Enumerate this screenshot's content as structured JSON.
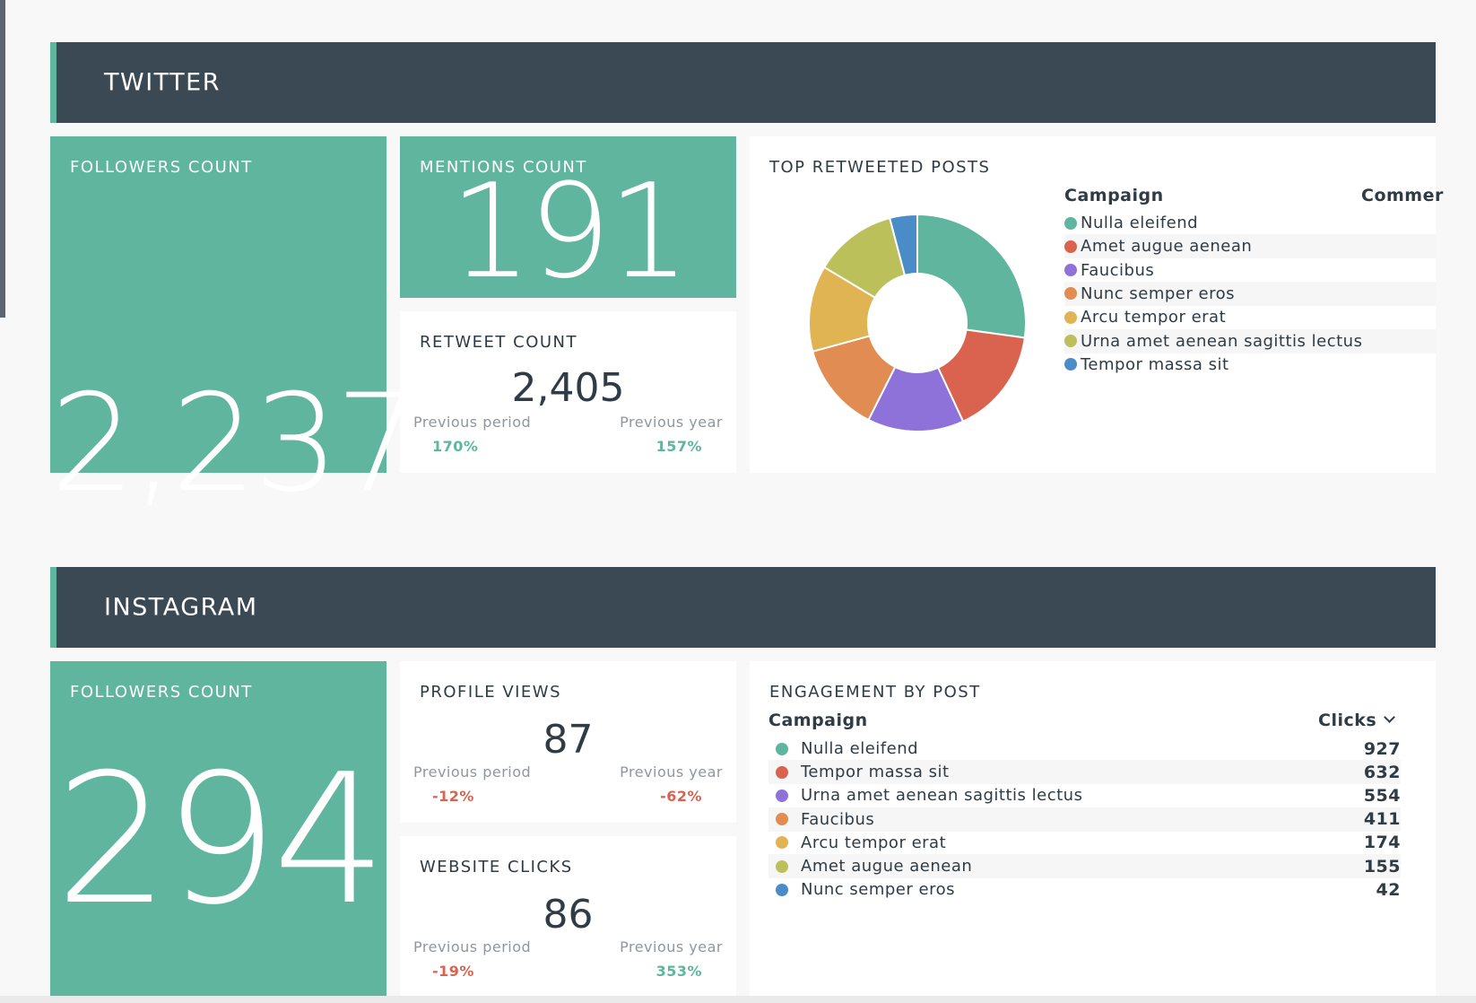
{
  "twitter": {
    "title": "TWITTER",
    "followers": {
      "title": "FOLLOWERS COUNT",
      "value": "2,237"
    },
    "mentions": {
      "title": "MENTIONS COUNT",
      "value": "191"
    },
    "retweets": {
      "title": "RETWEET COUNT",
      "value": "2,405",
      "prev_period_label": "Previous period",
      "prev_period_value": "170%",
      "prev_year_label": "Previous year",
      "prev_year_value": "157%"
    },
    "top_posts": {
      "title": "TOP RETWEETED POSTS",
      "col_campaign": "Campaign",
      "col_comments": "Commer",
      "legend": [
        {
          "label": "Nulla eleifend",
          "color": "#5fb59e"
        },
        {
          "label": "Amet augue aenean",
          "color": "#d9634f"
        },
        {
          "label": "Faucibus",
          "color": "#8e72d9"
        },
        {
          "label": "Nunc semper eros",
          "color": "#e08c52"
        },
        {
          "label": "Arcu tempor erat",
          "color": "#e0b452"
        },
        {
          "label": "Urna amet aenean sagittis lectus",
          "color": "#bcc05a"
        },
        {
          "label": "Tempor massa sit",
          "color": "#4a8cc7"
        }
      ]
    }
  },
  "instagram": {
    "title": "INSTAGRAM",
    "followers": {
      "title": "FOLLOWERS COUNT",
      "value": "294"
    },
    "profile_views": {
      "title": "PROFILE VIEWS",
      "value": "87",
      "prev_period_label": "Previous period",
      "prev_period_value": "-12%",
      "prev_year_label": "Previous year",
      "prev_year_value": "-62%"
    },
    "website_clicks": {
      "title": "WEBSITE CLICKS",
      "value": "86",
      "prev_period_label": "Previous period",
      "prev_period_value": "-19%",
      "prev_year_label": "Previous year",
      "prev_year_value": "353%"
    },
    "engagement": {
      "title": "ENGAGEMENT BY POST",
      "col_campaign": "Campaign",
      "col_clicks": "Clicks",
      "rows": [
        {
          "label": "Nulla eleifend",
          "clicks": "927",
          "color": "#5fb59e"
        },
        {
          "label": "Tempor massa sit",
          "clicks": "632",
          "color": "#d9634f"
        },
        {
          "label": "Urna amet aenean sagittis lectus",
          "clicks": "554",
          "color": "#8e72d9"
        },
        {
          "label": "Faucibus",
          "clicks": "411",
          "color": "#e08c52"
        },
        {
          "label": "Arcu tempor erat",
          "clicks": "174",
          "color": "#e0b452"
        },
        {
          "label": "Amet augue aenean",
          "clicks": "155",
          "color": "#bcc05a"
        },
        {
          "label": "Nunc semper eros",
          "clicks": "42",
          "color": "#4a8cc7"
        }
      ]
    }
  },
  "chart_data": {
    "type": "pie",
    "title": "TOP RETWEETED POSTS",
    "categories": [
      "Nulla eleifend",
      "Amet augue aenean",
      "Faucibus",
      "Nunc semper eros",
      "Arcu tempor erat",
      "Urna amet aenean sagittis lectus",
      "Tempor massa sit"
    ],
    "values": [
      26.5,
      15.5,
      14,
      13,
      12.5,
      12,
      4
    ],
    "colors": [
      "#5fb59e",
      "#d9634f",
      "#8e72d9",
      "#e08c52",
      "#e0b452",
      "#bcc05a",
      "#4a8cc7"
    ],
    "donut": true,
    "legend": "right"
  }
}
